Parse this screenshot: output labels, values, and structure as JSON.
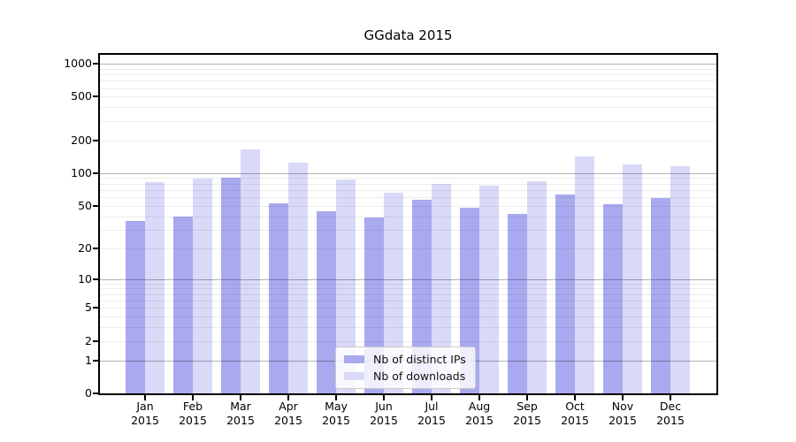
{
  "title": "GGdata 2015",
  "year_label": "2015",
  "legend": {
    "items": [
      {
        "label": "Nb of distinct IPs",
        "series": "ips"
      },
      {
        "label": "Nb of downloads",
        "series": "downloads"
      }
    ]
  },
  "colors": {
    "ips": "#a9a9f0",
    "downloads": "#d9d9f8",
    "axis": "#000000",
    "grid_major": "#b3b3b3",
    "grid_minor": "#ececec",
    "legend_border": "#cccccc"
  },
  "chart_data": {
    "type": "bar",
    "title": "GGdata 2015",
    "y_scale": "log(1+x)",
    "ylim": [
      0,
      1200
    ],
    "grid": true,
    "legend_position": "lower center",
    "categories": [
      "Jan 2015",
      "Feb 2015",
      "Mar 2015",
      "Apr 2015",
      "May 2015",
      "Jun 2015",
      "Jul 2015",
      "Aug 2015",
      "Sep 2015",
      "Oct 2015",
      "Nov 2015",
      "Dec 2015"
    ],
    "months": [
      "Jan",
      "Feb",
      "Mar",
      "Apr",
      "May",
      "Jun",
      "Jul",
      "Aug",
      "Sep",
      "Oct",
      "Nov",
      "Dec"
    ],
    "series": [
      {
        "name": "Nb of distinct IPs",
        "values": [
          36,
          40,
          90,
          53,
          44,
          39,
          57,
          48,
          42,
          63,
          52,
          59
        ]
      },
      {
        "name": "Nb of downloads",
        "values": [
          83,
          89,
          165,
          124,
          88,
          66,
          80,
          77,
          84,
          142,
          120,
          116
        ]
      }
    ],
    "y_ticks": [
      0,
      1,
      2,
      5,
      10,
      20,
      50,
      100,
      200,
      500,
      1000
    ]
  }
}
